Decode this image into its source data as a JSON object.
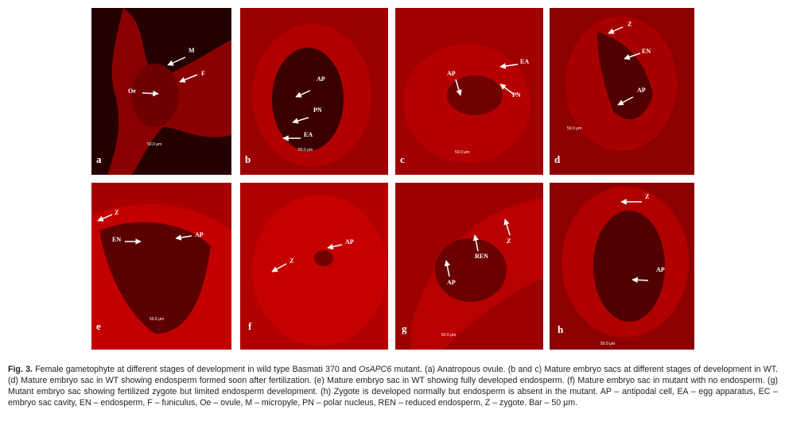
{
  "panels": [
    {
      "label": "a",
      "annotations": {
        "M": "M",
        "F": "F",
        "Oe": "Oe"
      },
      "scale": "50.0 μm"
    },
    {
      "label": "b",
      "annotations": {
        "AP": "AP",
        "PN": "PN",
        "EA": "EA"
      },
      "scale": "50.0 μm"
    },
    {
      "label": "c",
      "annotations": {
        "AP": "AP",
        "EA": "EA",
        "PN": "PN"
      },
      "scale": "50.0 μm"
    },
    {
      "label": "d",
      "annotations": {
        "Z": "Z",
        "EN": "EN",
        "AP": "AP"
      },
      "scale": "50.0 μm"
    },
    {
      "label": "e",
      "annotations": {
        "Z": "Z",
        "EN": "EN",
        "AP": "AP"
      },
      "scale": "50.0 μm"
    },
    {
      "label": "f",
      "annotations": {
        "AP": "AP",
        "Z": "Z"
      },
      "scale": ""
    },
    {
      "label": "g",
      "annotations": {
        "REN": "REN",
        "Z": "Z",
        "AP": "AP"
      },
      "scale": "50.0 μm"
    },
    {
      "label": "h",
      "annotations": {
        "Z": "Z",
        "AP": "AP"
      },
      "scale": "50.0 μm"
    }
  ],
  "caption": {
    "fig": "Fig. 3.",
    "part1": " Female gametophyte at different stages of development in wild type Basmati 370 and ",
    "gene": "OsAPC6",
    "part2": " mutant. (a) Anatropous ovule. (b and c) Mature embryo sacs at different stages of development in WT. (d) Mature embryo sac in WT showing endosperm formed soon after fertilization. (e) Mature embryo sac in WT showing fully developed endosperm. (f) Mature embryo sac in mutant with no endosperm. (g) Mutant embryo sac showing fertilized zygote but limited endosperm development. (h) Zygote is developed normally but endosperm is absent in the mutant. AP – antipodal cell, EA – egg apparatus, EC – embryo sac cavity, EN – endosperm, F – funiculus, Oe – ovule, M – micropyle, PN – polar nucleus, REN – reduced endosperm, Z – zygote. Bar – 50 μm."
  }
}
